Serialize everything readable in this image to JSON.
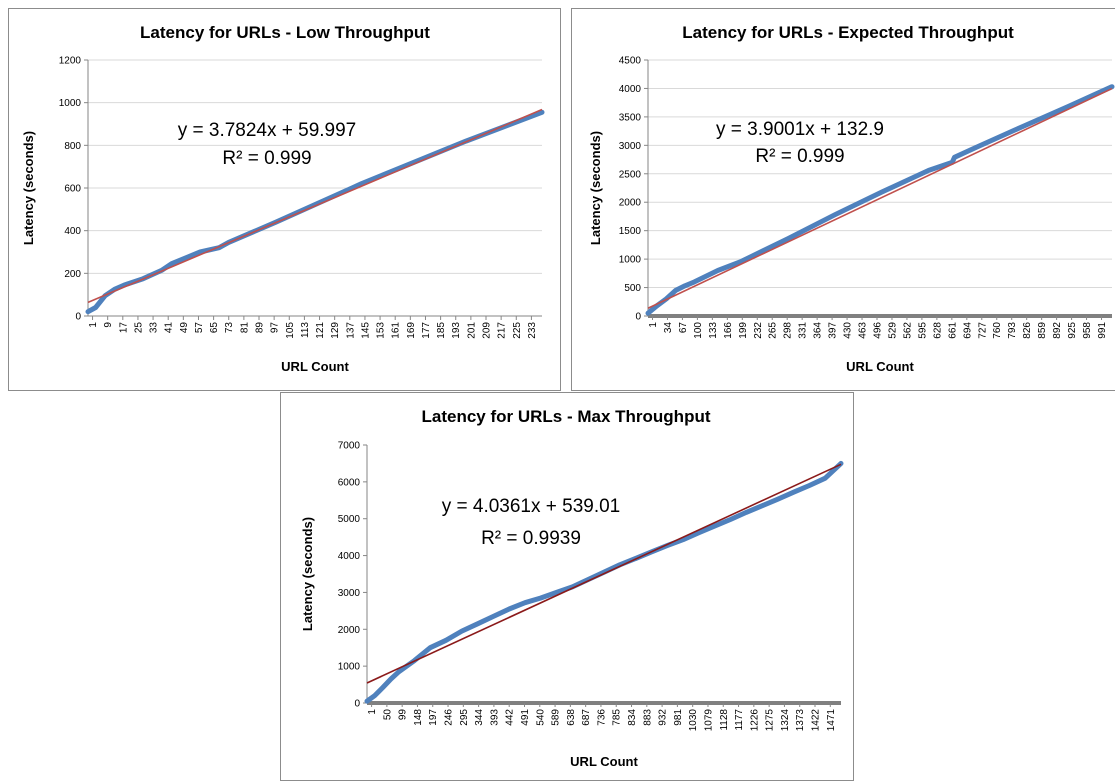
{
  "colors": {
    "series": "#4f81bd",
    "trendline": "#c0504d",
    "trendline_dark": "#8b1a1a",
    "gridline": "#d9d9d9",
    "axis": "#868686",
    "axis_thick": "#808080"
  },
  "chart_data": [
    {
      "type": "line",
      "title": "Latency for URLs - Low Throughput",
      "xlabel": "URL Count",
      "ylabel": "Latency (seconds)",
      "ylim": [
        0,
        1200
      ],
      "yticks": [
        "0",
        "200",
        "400",
        "600",
        "800",
        "1000",
        "1200"
      ],
      "xlim": [
        1,
        240
      ],
      "xticks": [
        "1",
        "9",
        "17",
        "25",
        "33",
        "41",
        "49",
        "57",
        "65",
        "73",
        "81",
        "89",
        "97",
        "105",
        "113",
        "121",
        "129",
        "137",
        "145",
        "153",
        "161",
        "169",
        "177",
        "185",
        "193",
        "201",
        "209",
        "217",
        "225",
        "233"
      ],
      "grid": true,
      "legend": "none",
      "trendline": {
        "slope": 3.7824,
        "intercept": 59.997,
        "equation": "y = 3.7824x + 59.997",
        "r2": "R² = 0.999"
      },
      "series": [
        {
          "x": [
            1,
            5,
            10,
            15,
            20,
            30,
            40,
            45,
            60,
            70,
            75,
            100,
            140,
            145,
            200,
            240
          ],
          "y": [
            20,
            40,
            95,
            125,
            145,
            175,
            215,
            245,
            300,
            320,
            345,
            440,
            600,
            620,
            820,
            955
          ]
        }
      ]
    },
    {
      "type": "line",
      "title": "Latency for URLs - Expected Throughput",
      "xlabel": "URL Count",
      "ylabel": "Latency (seconds)",
      "ylim": [
        0,
        4500
      ],
      "yticks": [
        "0",
        "500",
        "1000",
        "1500",
        "2000",
        "2500",
        "3000",
        "3500",
        "4000",
        "4500"
      ],
      "xlim": [
        1,
        991
      ],
      "xticks": [
        "1",
        "34",
        "67",
        "100",
        "133",
        "166",
        "199",
        "232",
        "265",
        "298",
        "331",
        "364",
        "397",
        "430",
        "463",
        "496",
        "529",
        "562",
        "595",
        "628",
        "661",
        "694",
        "727",
        "760",
        "793",
        "826",
        "859",
        "892",
        "925",
        "958",
        "991"
      ],
      "grid": true,
      "legend": "none",
      "trendline": {
        "slope": 3.9001,
        "intercept": 132.9,
        "equation": "y = 3.9001x + 132.9",
        "r2": "R² = 0.999"
      },
      "series": [
        {
          "x": [
            1,
            20,
            40,
            60,
            80,
            100,
            150,
            200,
            300,
            400,
            500,
            600,
            650,
            655,
            700,
            800,
            900,
            991
          ],
          "y": [
            50,
            180,
            300,
            450,
            530,
            600,
            800,
            960,
            1360,
            1780,
            2180,
            2560,
            2700,
            2790,
            2960,
            3330,
            3690,
            4030
          ]
        }
      ]
    },
    {
      "type": "line",
      "title": "Latency for URLs - Max Throughput",
      "xlabel": "URL Count",
      "ylabel": "Latency (seconds)",
      "ylim": [
        0,
        7000
      ],
      "yticks": [
        "0",
        "1000",
        "2000",
        "3000",
        "4000",
        "5000",
        "6000",
        "7000"
      ],
      "xlim": [
        1,
        1471
      ],
      "xticks": [
        "1",
        "50",
        "99",
        "148",
        "197",
        "246",
        "295",
        "344",
        "393",
        "442",
        "491",
        "540",
        "589",
        "638",
        "687",
        "736",
        "785",
        "834",
        "883",
        "932",
        "981",
        "1030",
        "1079",
        "1128",
        "1177",
        "1226",
        "1275",
        "1324",
        "1373",
        "1422",
        "1471"
      ],
      "grid": false,
      "legend": "none",
      "trendline": {
        "slope": 4.0361,
        "intercept": 539.01,
        "equation": "y = 4.0361x + 539.01",
        "r2": "R² = 0.9939"
      },
      "series": [
        {
          "x": [
            1,
            25,
            50,
            75,
            100,
            148,
            197,
            246,
            295,
            344,
            393,
            442,
            491,
            540,
            589,
            638,
            687,
            736,
            785,
            834,
            883,
            932,
            981,
            1030,
            1079,
            1128,
            1177,
            1226,
            1275,
            1324,
            1373,
            1422,
            1471
          ],
          "y": [
            50,
            200,
            420,
            650,
            850,
            1150,
            1500,
            1700,
            1950,
            2150,
            2350,
            2550,
            2720,
            2850,
            3000,
            3150,
            3350,
            3550,
            3750,
            3920,
            4100,
            4270,
            4430,
            4620,
            4800,
            4980,
            5170,
            5350,
            5530,
            5720,
            5900,
            6100,
            6500
          ]
        }
      ]
    }
  ]
}
